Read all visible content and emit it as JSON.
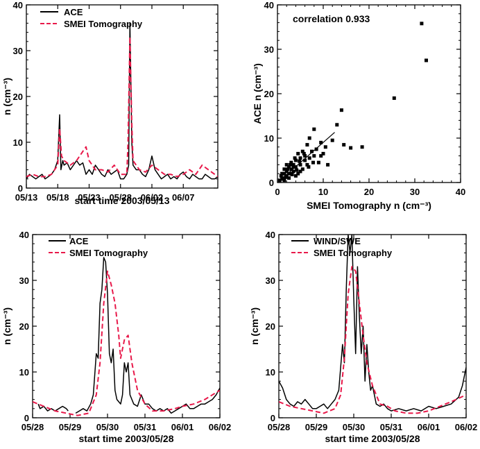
{
  "colors": {
    "ace": "#000000",
    "smei": "#e8194a",
    "axis": "#000000"
  },
  "chart_data": [
    {
      "id": "top-left",
      "type": "line",
      "xlabel": "start time 2003/05/13",
      "ylabel": "n (cm⁻³)",
      "ylim": [
        0,
        40
      ],
      "xlim": [
        0,
        30.5
      ],
      "yticks": [
        "0",
        "10",
        "20",
        "30",
        "40"
      ],
      "xticks": [
        {
          "pos": 0,
          "label": "05/13"
        },
        {
          "pos": 5,
          "label": "05/18"
        },
        {
          "pos": 10,
          "label": "05/23"
        },
        {
          "pos": 15,
          "label": "05/28"
        },
        {
          "pos": 20,
          "label": "06/02"
        },
        {
          "pos": 25,
          "label": "06/07"
        }
      ],
      "legend": [
        "ACE",
        "SMEI Tomography"
      ],
      "series": [
        {
          "name": "ACE",
          "style": "solid",
          "x": [
            0,
            0.5,
            1,
            1.5,
            2,
            2.5,
            3,
            3.5,
            4,
            4.5,
            5,
            5.3,
            5.5,
            5.8,
            6,
            6.5,
            7,
            7.5,
            8,
            8.5,
            9,
            9.5,
            10,
            10.5,
            11,
            11.5,
            12,
            12.5,
            13,
            13.5,
            14,
            14.5,
            15,
            15.5,
            16,
            16.3,
            16.5,
            16.8,
            17,
            17.5,
            18,
            18.5,
            19,
            19.5,
            20,
            20.5,
            21,
            21.5,
            22,
            22.5,
            23,
            23.5,
            24,
            24.5,
            25,
            25.5,
            26,
            26.5,
            27,
            27.5,
            28,
            28.5,
            29,
            29.5,
            30,
            30.5
          ],
          "values": [
            2,
            3,
            2.5,
            2,
            2.5,
            3,
            2,
            2.5,
            3,
            4,
            6,
            16,
            4,
            6,
            5,
            5.5,
            4,
            5,
            6,
            5,
            5.5,
            3,
            4,
            3,
            5,
            4,
            3,
            2.5,
            4,
            3,
            3.5,
            4,
            2,
            2,
            3,
            5,
            36,
            10,
            5,
            4,
            4,
            3,
            2.5,
            4,
            7,
            4,
            3,
            2,
            2.5,
            3,
            2,
            2.5,
            2,
            3,
            3.5,
            2.5,
            2,
            3,
            2.5,
            2,
            2,
            3,
            2.5,
            2,
            2,
            2.5
          ]
        },
        {
          "name": "SMEI Tomography",
          "style": "dashed",
          "x": [
            0,
            1,
            2,
            3,
            4,
            5,
            5.3,
            5.6,
            6,
            7,
            8,
            9,
            9.5,
            10,
            11,
            12,
            13,
            14,
            15,
            16,
            16.2,
            16.5,
            16.8,
            17,
            18,
            19,
            20,
            21,
            22,
            23,
            24,
            25,
            26,
            27,
            28,
            29,
            30,
            30.5
          ],
          "values": [
            2.5,
            3,
            2.5,
            2.5,
            3,
            5,
            13,
            7,
            6,
            5,
            6,
            8,
            9,
            6,
            4,
            4,
            3.5,
            5,
            3,
            3,
            10,
            33,
            14,
            6,
            4,
            3.5,
            5,
            4,
            3,
            3,
            2.5,
            3,
            4,
            3,
            5,
            4,
            3,
            2.5
          ]
        }
      ]
    },
    {
      "id": "top-right",
      "type": "scatter",
      "xlabel": "SMEI Tomography n (cm⁻³)",
      "ylabel": "ACE n (cm⁻³)",
      "xlim": [
        0,
        40
      ],
      "ylim": [
        0,
        40
      ],
      "xticks": [
        "0",
        "10",
        "20",
        "30",
        "40"
      ],
      "yticks": [
        "0",
        "10",
        "20",
        "30",
        "40"
      ],
      "annotation": "correlation 0.933",
      "points": [
        [
          31.5,
          35.8
        ],
        [
          32.5,
          27.5
        ],
        [
          25.5,
          19
        ],
        [
          14,
          16.3
        ],
        [
          18.5,
          8
        ],
        [
          16,
          7.8
        ],
        [
          13,
          13
        ],
        [
          12,
          9.5
        ],
        [
          14.5,
          8.5
        ],
        [
          8,
          12
        ],
        [
          10.5,
          8
        ],
        [
          9.5,
          9
        ],
        [
          7,
          10
        ],
        [
          7.5,
          7
        ],
        [
          6.5,
          8.5
        ],
        [
          5.5,
          7
        ],
        [
          6,
          6
        ],
        [
          5,
          5.5
        ],
        [
          4.5,
          6.5
        ],
        [
          4,
          5
        ],
        [
          3.5,
          4
        ],
        [
          3,
          4.5
        ],
        [
          3,
          3
        ],
        [
          2.5,
          3.5
        ],
        [
          2,
          2.5
        ],
        [
          2,
          1.5
        ],
        [
          1.5,
          2
        ],
        [
          1.5,
          3
        ],
        [
          1,
          1
        ],
        [
          1,
          2
        ],
        [
          0.5,
          0.5
        ],
        [
          2.5,
          2
        ],
        [
          3.5,
          2.5
        ],
        [
          4,
          3.5
        ],
        [
          5,
          4
        ],
        [
          6,
          5
        ],
        [
          7,
          5.5
        ],
        [
          8,
          6
        ],
        [
          9,
          4.5
        ],
        [
          10,
          6.5
        ],
        [
          11,
          4
        ],
        [
          1.8,
          1.2
        ],
        [
          2.2,
          3
        ],
        [
          3.2,
          1.8
        ],
        [
          4.2,
          2.8
        ],
        [
          5.5,
          3
        ],
        [
          6.5,
          4
        ],
        [
          1.2,
          0.8
        ],
        [
          0.8,
          1.5
        ],
        [
          2.8,
          4
        ],
        [
          3.8,
          5.5
        ],
        [
          4.8,
          4.8
        ],
        [
          5.8,
          6.5
        ],
        [
          6.8,
          3.5
        ],
        [
          7.8,
          4.5
        ],
        [
          8.5,
          7.5
        ],
        [
          9.5,
          6
        ],
        [
          2.5,
          1
        ],
        [
          3.5,
          3.5
        ],
        [
          4.5,
          2
        ],
        [
          1.5,
          0.5
        ],
        [
          2,
          4
        ],
        [
          3,
          2
        ],
        [
          4,
          1.5
        ],
        [
          5,
          2.5
        ]
      ],
      "fit_line": {
        "x": [
          0.5,
          12.5
        ],
        "y": [
          0.4,
          11.3
        ]
      }
    },
    {
      "id": "bottom-left",
      "type": "line",
      "xlabel": "start time 2003/05/28",
      "ylabel": "n (cm⁻³)",
      "ylim": [
        0,
        40
      ],
      "xlim": [
        0,
        5
      ],
      "yticks": [
        "0",
        "10",
        "20",
        "30",
        "40"
      ],
      "xticks": [
        {
          "pos": 0,
          "label": "05/28"
        },
        {
          "pos": 1,
          "label": "05/29"
        },
        {
          "pos": 2,
          "label": "05/30"
        },
        {
          "pos": 3,
          "label": "05/31"
        },
        {
          "pos": 4,
          "label": "06/01"
        },
        {
          "pos": 5,
          "label": "06/02"
        }
      ],
      "legend": [
        "ACE",
        "SMEI Tomography"
      ],
      "series": [
        {
          "name": "ACE",
          "style": "solid",
          "segments": [
            {
              "x": [
                0.15,
                0.2,
                0.3,
                0.4,
                0.5,
                0.6,
                0.7,
                0.8,
                0.9,
                0.95
              ],
              "values": [
                3,
                2,
                2.5,
                1.5,
                2,
                1.5,
                2,
                2.5,
                2,
                1.5
              ]
            },
            {
              "x": [
                1.15,
                1.25,
                1.35,
                1.45,
                1.55,
                1.62,
                1.7,
                1.75,
                1.8,
                1.85,
                1.9,
                1.95,
                2.0,
                2.05,
                2.1,
                2.15,
                2.2,
                2.25,
                2.3,
                2.35,
                2.4,
                2.45,
                2.5,
                2.55,
                2.6,
                2.7,
                2.8,
                2.9,
                3.0,
                3.1,
                3.2,
                3.3,
                3.4,
                3.5,
                3.6,
                3.7,
                3.8,
                3.9,
                4.0,
                4.1,
                4.2,
                4.3,
                4.4,
                4.5,
                4.6,
                4.7,
                4.8,
                4.9,
                5.0
              ],
              "values": [
                1,
                1.5,
                2,
                1.5,
                3,
                5,
                14,
                13,
                25,
                28,
                35,
                34,
                27,
                14,
                12,
                15,
                6,
                4,
                3.5,
                3,
                5,
                12,
                10,
                12,
                5,
                3,
                2.5,
                5,
                3,
                3,
                2,
                1.5,
                2,
                1.5,
                2,
                1,
                1.5,
                2,
                2.5,
                3,
                2,
                2,
                2.5,
                3,
                3,
                3.5,
                4,
                5,
                6.5
              ]
            }
          ]
        },
        {
          "name": "SMEI Tomography",
          "style": "dashed",
          "x": [
            0,
            0.3,
            0.6,
            0.9,
            1.2,
            1.5,
            1.7,
            1.8,
            1.9,
            2.0,
            2.1,
            2.2,
            2.3,
            2.35,
            2.45,
            2.55,
            2.65,
            2.8,
            3.0,
            3.2,
            3.5,
            3.8,
            4.0,
            4.3,
            4.6,
            5.0
          ],
          "values": [
            3.5,
            2.5,
            1.5,
            1,
            0.5,
            1,
            5,
            12,
            25,
            32,
            29,
            25,
            18,
            13,
            17,
            18,
            12,
            6,
            3,
            1.5,
            1.5,
            2,
            2.5,
            3,
            4,
            6
          ]
        }
      ]
    },
    {
      "id": "bottom-right",
      "type": "line",
      "xlabel": "start time 2003/05/28",
      "ylabel": "n (cm⁻³)",
      "ylim": [
        0,
        40
      ],
      "xlim": [
        0,
        5
      ],
      "yticks": [
        "0",
        "10",
        "20",
        "30",
        "40"
      ],
      "xticks": [
        {
          "pos": 0,
          "label": "05/28"
        },
        {
          "pos": 1,
          "label": "05/29"
        },
        {
          "pos": 2,
          "label": "05/30"
        },
        {
          "pos": 3,
          "label": "05/31"
        },
        {
          "pos": 4,
          "label": "06/01"
        },
        {
          "pos": 5,
          "label": "06/02"
        }
      ],
      "legend": [
        "WIND/SWE",
        "SMEI Tomography"
      ],
      "series": [
        {
          "name": "WIND/SWE",
          "style": "solid",
          "x": [
            0,
            0.1,
            0.2,
            0.3,
            0.4,
            0.5,
            0.6,
            0.7,
            0.8,
            0.9,
            1.0,
            1.1,
            1.2,
            1.3,
            1.4,
            1.5,
            1.6,
            1.7,
            1.75,
            1.8,
            1.85,
            1.9,
            1.95,
            2.0,
            2.05,
            2.1,
            2.15,
            2.2,
            2.25,
            2.3,
            2.35,
            2.4,
            2.45,
            2.5,
            2.55,
            2.6,
            2.7,
            2.8,
            2.9,
            3.0,
            3.2,
            3.4,
            3.6,
            3.8,
            4.0,
            4.2,
            4.4,
            4.6,
            4.8,
            4.9,
            5.0
          ],
          "values": [
            8,
            6.5,
            4,
            3,
            2.5,
            3.5,
            3,
            4,
            3,
            2,
            2,
            2.5,
            3,
            2,
            3,
            4,
            6,
            16,
            12,
            28,
            40,
            36,
            40,
            26,
            14,
            33,
            22,
            14,
            20,
            8,
            16,
            10,
            6,
            7,
            5,
            3,
            2.5,
            3,
            2,
            1.5,
            2,
            1.5,
            2,
            1.5,
            2.5,
            2,
            2.5,
            3,
            4.5,
            7,
            11
          ]
        },
        {
          "name": "SMEI Tomography",
          "style": "dashed",
          "x": [
            0,
            0.3,
            0.6,
            0.9,
            1.2,
            1.5,
            1.65,
            1.75,
            1.85,
            1.95,
            2.05,
            2.15,
            2.25,
            2.35,
            2.5,
            2.7,
            2.9,
            3.1,
            3.4,
            3.7,
            4.0,
            4.3,
            4.6,
            5.0
          ],
          "values": [
            3.5,
            2.5,
            2,
            1.5,
            1,
            2,
            5,
            13,
            27,
            33,
            32,
            25,
            18,
            12,
            7,
            3,
            2.5,
            1.5,
            1,
            1,
            1.5,
            2.5,
            3.5,
            5
          ]
        }
      ]
    }
  ]
}
